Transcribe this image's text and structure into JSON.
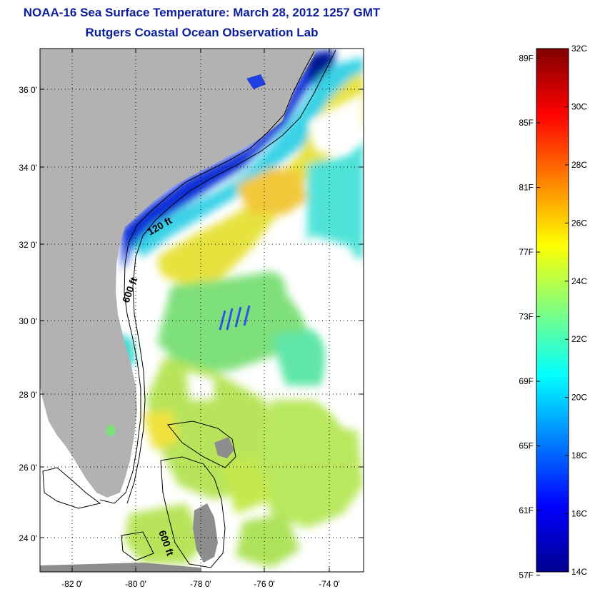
{
  "title_line1": "NOAA-16 Sea Surface Temperature:  March 28, 2012 1257 GMT",
  "title_line2": "Rutgers Coastal Ocean Observation Lab",
  "map": {
    "lat_labels": [
      "36 0'",
      "34 0'",
      "32 0'",
      "30 0'",
      "28 0'",
      "26 0'",
      "24 0'"
    ],
    "lon_labels": [
      "-82 0'",
      "-80 0'",
      "-78 0'",
      "-76 0'",
      "-74 0'"
    ],
    "contour_labels": [
      "120 ft",
      "600 ft",
      "600 ft"
    ],
    "land_color": "#b2b2b2",
    "nodata_color": "#ffffff"
  },
  "colorbar": {
    "celsius_labels": [
      "32C",
      "30C",
      "28C",
      "26C",
      "24C",
      "22C",
      "20C",
      "18C",
      "16C",
      "14C"
    ],
    "fahrenheit_labels": [
      "89F",
      "85F",
      "81F",
      "77F",
      "73F",
      "69F",
      "65F",
      "61F",
      "57F"
    ],
    "colormap": "jet",
    "min_c": 14,
    "max_c": 32
  }
}
